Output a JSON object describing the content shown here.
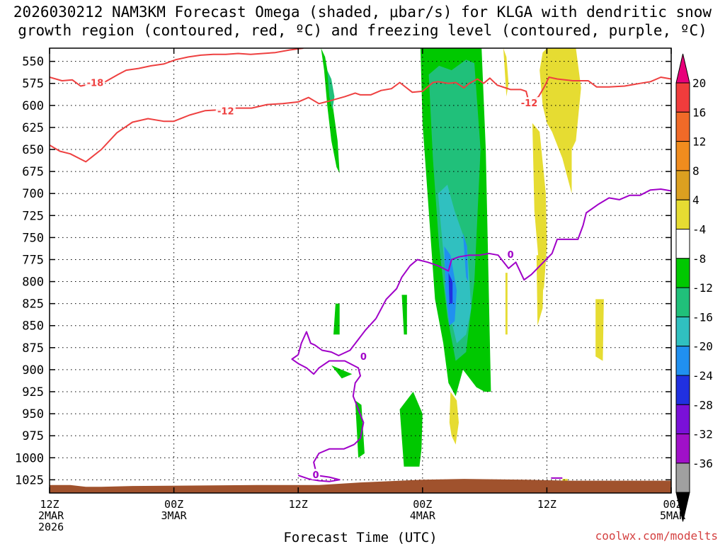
{
  "title_line1": "2026030212 NAM3KM Forecast Omega (shaded, μbar/s) for KLGA with dendritic snow",
  "title_line2": "growth region (contoured, red, ºC) and freezing level (contoured, purple, ºC)",
  "credit": "coolwx.com/modelts",
  "chart_data": {
    "type": "heatmap",
    "title": "2026030212 NAM3KM Forecast Omega (shaded, μbar/s) for KLGA with dendritic snow growth region (contoured, red, ºC) and freezing level (contoured, purple, ºC)",
    "xlabel": "Forecast Time (UTC)",
    "ylabel": "",
    "x_range_hours": [
      0,
      60
    ],
    "y_range_mb": [
      1040,
      535
    ],
    "y_ticks": [
      550,
      575,
      600,
      625,
      650,
      675,
      700,
      725,
      750,
      775,
      800,
      825,
      850,
      875,
      900,
      925,
      950,
      975,
      1000,
      1025
    ],
    "x_ticks": [
      {
        "hour": 0,
        "lines": [
          "12Z",
          "2MAR",
          "2026"
        ]
      },
      {
        "hour": 12,
        "lines": [
          "00Z",
          "3MAR"
        ]
      },
      {
        "hour": 24,
        "lines": [
          "12Z"
        ]
      },
      {
        "hour": 36,
        "lines": [
          "00Z",
          "4MAR"
        ]
      },
      {
        "hour": 48,
        "lines": [
          "12Z"
        ]
      },
      {
        "hour": 60,
        "lines": [
          "00Z",
          "5MAR"
        ]
      }
    ],
    "grid": true,
    "colorbar": {
      "position": "right",
      "labels": [
        "20",
        "16",
        "12",
        "8",
        "4",
        "-4",
        "-8",
        "-12",
        "-16",
        "-20",
        "-24",
        "-28",
        "-32",
        "-36"
      ],
      "colors_top_to_bottom": [
        "#e8007a",
        "#f03c3c",
        "#f06a28",
        "#f08c1e",
        "#dca020",
        "#e6dc32",
        "#ffffff",
        "#00c800",
        "#20c07a",
        "#30c0c0",
        "#2090f0",
        "#2030e0",
        "#7a10d8",
        "#a010c8",
        "#a0a0a0",
        "#000000"
      ]
    },
    "shading": [
      {
        "name": "omega",
        "color": "#00c800",
        "x": [
          26.2,
          26.5,
          26.8,
          27.2,
          27.7,
          28.0,
          27.8,
          27.1,
          26.6,
          26.2
        ],
        "y": [
          535,
          560,
          600,
          640,
          670,
          677,
          640,
          580,
          545,
          535
        ]
      },
      {
        "name": "omega",
        "color": "#20c07a",
        "x": [
          26.8,
          27.2,
          27.5,
          27.3,
          27.0,
          26.8
        ],
        "y": [
          560,
          570,
          590,
          605,
          590,
          560
        ]
      },
      {
        "name": "omega",
        "color": "#00c800",
        "x": [
          35.8,
          37.0,
          38.5,
          40.0,
          41.0,
          41.7,
          42.1,
          42.6,
          42.0,
          41.2,
          39.9,
          39.2,
          38.5,
          38.0,
          37.2,
          36.6,
          36.0,
          35.8
        ],
        "y": [
          535,
          535,
          535,
          535,
          535,
          535,
          650,
          925,
          925,
          920,
          900,
          930,
          915,
          870,
          820,
          720,
          620,
          535
        ]
      },
      {
        "name": "omega",
        "color": "#20c07a",
        "x": [
          36.6,
          37.6,
          38.8,
          40.2,
          41.0,
          41.6,
          41.0,
          40.2,
          39.2,
          38.4,
          37.6,
          37.0,
          36.6
        ],
        "y": [
          565,
          555,
          560,
          548,
          552,
          650,
          800,
          880,
          890,
          840,
          760,
          660,
          565
        ]
      },
      {
        "name": "omega",
        "color": "#30c0c0",
        "x": [
          37.5,
          38.4,
          39.1,
          40.3,
          40.7,
          40.2,
          39.3,
          38.7,
          38.2,
          37.8,
          37.5
        ],
        "y": [
          700,
          690,
          720,
          760,
          830,
          860,
          870,
          840,
          790,
          740,
          700
        ]
      },
      {
        "name": "omega",
        "color": "#2090f0",
        "x": [
          38.1,
          38.7,
          39.3,
          39.1,
          38.6,
          38.2,
          38.1
        ],
        "y": [
          760,
          770,
          810,
          845,
          850,
          810,
          760
        ]
      },
      {
        "name": "omega",
        "color": "#2030e0",
        "x": [
          38.5,
          38.9,
          38.9,
          38.6,
          38.5
        ],
        "y": [
          790,
          800,
          825,
          825,
          790
        ]
      },
      {
        "name": "omega",
        "color": "#2090f0",
        "x": [
          39.9,
          40.3,
          40.4,
          40.2,
          39.9
        ],
        "y": [
          745,
          760,
          800,
          795,
          745
        ]
      },
      {
        "name": "omega",
        "color": "#e6dc32",
        "x": [
          43.8,
          44.1,
          44.3,
          44.1,
          43.8
        ],
        "y": [
          535,
          545,
          575,
          590,
          535
        ]
      },
      {
        "name": "omega",
        "color": "#e6dc32",
        "x": [
          48.0,
          49.5,
          50.8,
          51.3,
          50.8,
          50.4,
          50.4,
          49.5,
          48.5,
          48.0,
          47.6,
          47.3,
          47.6,
          48.0
        ],
        "y": [
          535,
          535,
          535,
          580,
          640,
          650,
          700,
          660,
          630,
          620,
          600,
          560,
          540,
          535
        ]
      },
      {
        "name": "omega",
        "color": "#e6dc32",
        "x": [
          46.6,
          47.3,
          47.9,
          48.0,
          47.7,
          47.3,
          46.8,
          46.6
        ],
        "y": [
          620,
          630,
          700,
          760,
          810,
          790,
          720,
          620
        ]
      },
      {
        "name": "omega",
        "color": "#e6dc32",
        "x": [
          47.0,
          47.7,
          47.6,
          47.1,
          47.0
        ],
        "y": [
          770,
          770,
          830,
          850,
          770
        ]
      },
      {
        "name": "omega",
        "color": "#e6dc32",
        "x": [
          52.7,
          53.5,
          53.4,
          52.7,
          52.7
        ],
        "y": [
          820,
          820,
          890,
          885,
          820
        ]
      },
      {
        "name": "omega",
        "color": "#e6dc32",
        "x": [
          44.0,
          44.2,
          44.2,
          44.0,
          44.0
        ],
        "y": [
          790,
          790,
          860,
          860,
          790
        ]
      },
      {
        "name": "omega",
        "color": "#e6dc32",
        "x": [
          38.7,
          39.3,
          39.5,
          39.2,
          38.8,
          38.6,
          38.7
        ],
        "y": [
          925,
          935,
          960,
          985,
          975,
          960,
          925
        ]
      },
      {
        "name": "omega",
        "color": "#00c800",
        "x": [
          27.6,
          28.0,
          28.0,
          27.4,
          27.6
        ],
        "y": [
          825,
          825,
          860,
          860,
          825
        ]
      },
      {
        "name": "omega",
        "color": "#00c800",
        "x": [
          27.2,
          29.2,
          28.2,
          27.2
        ],
        "y": [
          895,
          905,
          910,
          895
        ]
      },
      {
        "name": "omega",
        "color": "#00c800",
        "x": [
          29.5,
          30.1,
          30.4,
          29.8,
          29.5
        ],
        "y": [
          935,
          940,
          995,
          1000,
          935
        ]
      },
      {
        "name": "omega",
        "color": "#00c800",
        "x": [
          34.0,
          34.5,
          34.5,
          34.2,
          34.0
        ],
        "y": [
          815,
          815,
          860,
          860,
          815
        ]
      },
      {
        "name": "omega",
        "color": "#00c800",
        "x": [
          33.8,
          35.1,
          36.0,
          35.9,
          35.7,
          34.2,
          33.8
        ],
        "y": [
          945,
          925,
          950,
          990,
          1010,
          1010,
          945
        ]
      },
      {
        "name": "omega",
        "color": "#e6dc32",
        "x": [
          49.5,
          50.0,
          50.0,
          49.5,
          49.5
        ],
        "y": [
          1024,
          1024,
          1027,
          1027,
          1024
        ]
      }
    ],
    "series": [
      {
        "name": "-18",
        "color": "#ee4040",
        "x": [
          0,
          1.2,
          2.2,
          3.0,
          4.2,
          5.4,
          6.6,
          7.4,
          8.6,
          9.8,
          11.0,
          12.2,
          13.4,
          14.6,
          15.8,
          17.0,
          18.2,
          19.4,
          20.6,
          21.8,
          23.2,
          24.5
        ],
        "y": [
          568,
          572,
          571,
          578,
          575,
          573,
          565,
          560,
          558,
          555,
          553,
          548,
          545,
          543,
          542,
          542,
          541,
          542,
          541,
          540,
          537,
          535
        ]
      },
      {
        "name": "-12",
        "color": "#ee4040",
        "x": [
          0,
          1.0,
          2.0,
          3.5,
          5.0,
          6.5,
          8.0,
          9.5,
          11.0,
          12.0,
          13.5,
          15.0,
          16.5,
          18.0,
          19.5,
          21.0,
          22.5,
          24.0,
          25.0,
          26.0,
          27.0,
          28.5,
          29.5,
          30.0,
          31.0,
          32.0,
          33.0,
          33.8,
          35.0,
          36.0,
          37.0,
          37.5,
          38.5,
          39.2,
          40.0,
          40.5,
          41.3,
          41.9,
          42.5,
          43.2,
          44.0,
          44.5,
          45.5,
          46.0,
          46.3
        ],
        "y": [
          645,
          652,
          655,
          664,
          650,
          631,
          619,
          615,
          618,
          618,
          611,
          606,
          605,
          603,
          603,
          599,
          598,
          596,
          591,
          598,
          595,
          590,
          586,
          588,
          588,
          583,
          581,
          574,
          585,
          584,
          574,
          573,
          575,
          574,
          580,
          575,
          570,
          575,
          569,
          577,
          580,
          582,
          582,
          584,
          598
        ]
      },
      {
        "name": "-12",
        "color": "#ee4040",
        "x": [
          46.3,
          47.2,
          47.8,
          48.2,
          49.0,
          50.5,
          52.0,
          52.8,
          54.0,
          55.5,
          57.0,
          58.0,
          59.0,
          60.0
        ],
        "y": [
          598,
          590,
          578,
          568,
          570,
          572,
          572,
          579,
          579,
          578,
          575,
          573,
          568,
          570
        ]
      },
      {
        "name": "0",
        "color": "#a000c8",
        "x": [
          24.0,
          24.3,
          24.8,
          25.2,
          25.6,
          26.3,
          27.2,
          27.9,
          29.0,
          30.5,
          31.5
        ],
        "y": [
          883,
          870,
          857,
          870,
          872,
          878,
          880,
          884,
          878,
          855,
          842
        ]
      },
      {
        "name": "0",
        "color": "#a000c8",
        "x": [
          24.0,
          23.4,
          24.0,
          24.8,
          25.5,
          26.0,
          27.0,
          28.5,
          29.8,
          30.0,
          29.5,
          29.3,
          29.8,
          30.3,
          30.0,
          29.4
        ],
        "y": [
          883,
          888,
          893,
          898,
          905,
          898,
          890,
          890,
          898,
          907,
          915,
          930,
          945,
          960,
          978,
          985
        ]
      },
      {
        "name": "0",
        "color": "#a000c8",
        "x": [
          29.4,
          28.4,
          27.0,
          26.0,
          25.5,
          25.8,
          27.0,
          28.0,
          27.0,
          26.0,
          25.0,
          24.0
        ],
        "y": [
          985,
          990,
          990,
          995,
          1005,
          1020,
          1022,
          1025,
          1027,
          1026,
          1024,
          1020
        ]
      },
      {
        "name": "0",
        "color": "#a000c8",
        "x": [
          31.5,
          32.5,
          33.5,
          34.0,
          34.8,
          35.5,
          36.5,
          37.5,
          38.5,
          38.8,
          39.5,
          40.5,
          41.5,
          42.4,
          43.3,
          44.3,
          45.0,
          45.8,
          46.5,
          47.5,
          48.5,
          49.0,
          50.0,
          51.0,
          51.5,
          51.8,
          53.0,
          54.0,
          55.0,
          56.0,
          57.0,
          58.0,
          59.0,
          60.0
        ],
        "y": [
          842,
          820,
          808,
          795,
          782,
          775,
          778,
          782,
          788,
          775,
          772,
          770,
          770,
          768,
          770,
          785,
          778,
          798,
          792,
          780,
          768,
          752,
          752,
          752,
          736,
          722,
          712,
          705,
          707,
          702,
          702,
          696,
          695,
          697
        ]
      },
      {
        "name": "0",
        "color": "#a000c8",
        "x": [
          48.4,
          49.5
        ],
        "y": [
          1023,
          1023
        ]
      }
    ],
    "terrain": {
      "color": "#a0522d",
      "x": [
        0,
        2.0,
        3.5,
        5.0,
        8.0,
        20.0,
        26.0,
        30.0,
        36.0,
        40.0,
        46.0,
        50.0,
        56.0,
        60.0
      ],
      "y": [
        1031,
        1031,
        1033,
        1033,
        1032,
        1031,
        1031,
        1028,
        1025,
        1024,
        1025,
        1026,
        1026,
        1026
      ]
    },
    "contour_labels": [
      {
        "text": "-18",
        "x": 4.4,
        "y": 574,
        "color": "#ee4040"
      },
      {
        "text": "-12",
        "x": 17.0,
        "y": 606,
        "color": "#ee4040"
      },
      {
        "text": "-12",
        "x": 46.3,
        "y": 597,
        "color": "#ee4040"
      },
      {
        "text": "0",
        "x": 30.3,
        "y": 885,
        "color": "#a000c8"
      },
      {
        "text": "0",
        "x": 44.5,
        "y": 769,
        "color": "#a000c8"
      },
      {
        "text": "0",
        "x": 25.7,
        "y": 1019,
        "color": "#a000c8"
      }
    ]
  }
}
